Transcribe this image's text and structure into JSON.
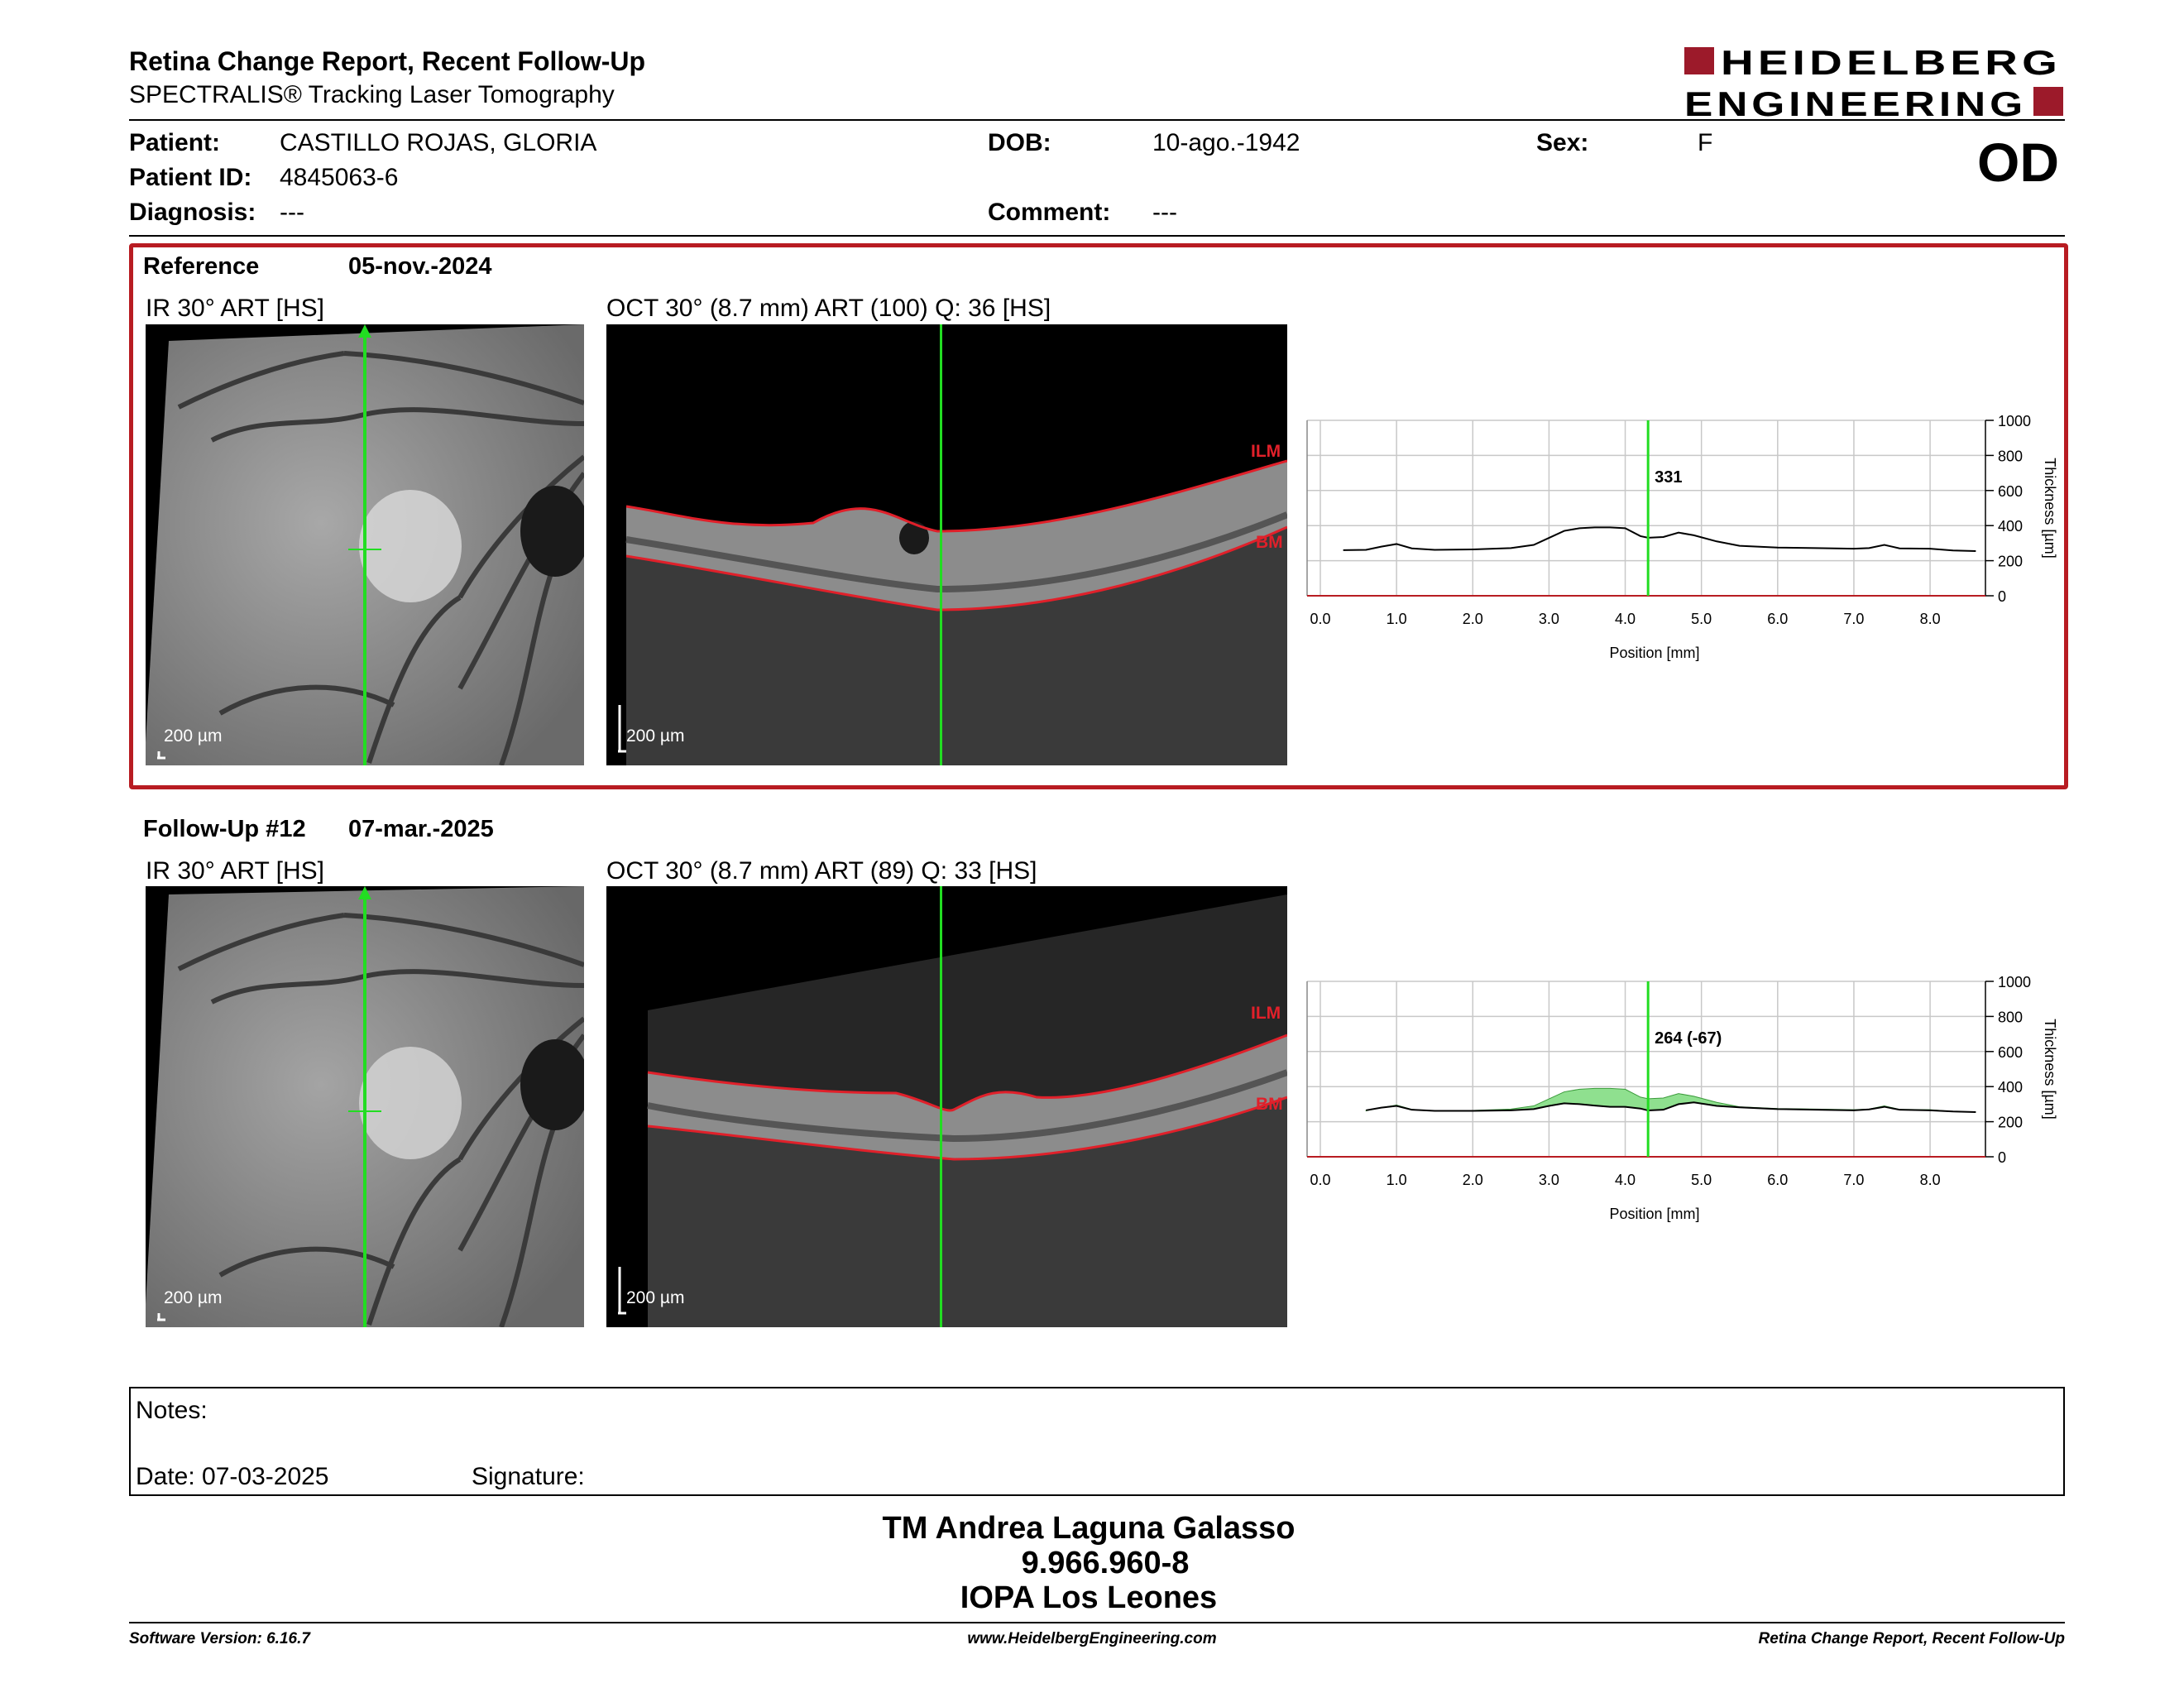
{
  "header": {
    "title": "Retina Change Report, Recent Follow-Up",
    "subtitle": "SPECTRALIS® Tracking Laser Tomography",
    "logo_line1": "HEIDELBERG",
    "logo_line2": "ENGINEERING",
    "brand_color": "#9c1a2a"
  },
  "patient": {
    "patient_label": "Patient:",
    "patient_value": "CASTILLO ROJAS, GLORIA",
    "id_label": "Patient ID:",
    "id_value": "4845063-6",
    "diagnosis_label": "Diagnosis:",
    "diagnosis_value": "---",
    "dob_label": "DOB:",
    "dob_value": "10-ago.-1942",
    "comment_label": "Comment:",
    "comment_value": "---",
    "sex_label": "Sex:",
    "sex_value": "F",
    "eye": "OD"
  },
  "reference": {
    "label": "Reference",
    "date": "05-nov.-2024",
    "ir_title": "IR 30° ART [HS]",
    "oct_title": "OCT 30° (8.7 mm) ART (100) Q: 36 [HS]",
    "scale_label": "200 µm",
    "ilm_label": "ILM",
    "bm_label": "BM",
    "box_color": "#b81c22"
  },
  "followup": {
    "label": "Follow-Up #12",
    "date": "07-mar.-2025",
    "ir_title": "IR 30° ART [HS]",
    "oct_title": "OCT 30° (8.7 mm) ART (89) Q: 33 [HS]",
    "scale_label": "200 µm",
    "ilm_label": "ILM",
    "bm_label": "BM"
  },
  "chart_data": [
    {
      "type": "line",
      "xlabel": "Position [mm]",
      "ylabel": "Thickness [µm]",
      "xlim": [
        0,
        8.7
      ],
      "ylim": [
        0,
        1000
      ],
      "x_ticks": [
        "0.0",
        "1.0",
        "2.0",
        "3.0",
        "4.0",
        "5.0",
        "6.0",
        "7.0",
        "8.0"
      ],
      "y_ticks": [
        "1000",
        "800",
        "600",
        "400",
        "200",
        "0"
      ],
      "grid": true,
      "cursor_x": 4.3,
      "cursor_label": "331",
      "series": [
        {
          "x": [
            0.3,
            0.6,
            0.8,
            1.0,
            1.2,
            1.5,
            2.0,
            2.5,
            2.8,
            3.0,
            3.2,
            3.4,
            3.6,
            3.8,
            4.0,
            4.2,
            4.3,
            4.5,
            4.7,
            4.9,
            5.2,
            5.5,
            6.0,
            6.5,
            7.0,
            7.2,
            7.4,
            7.6,
            8.0,
            8.3,
            8.6
          ],
          "y": [
            260,
            262,
            280,
            295,
            270,
            262,
            264,
            272,
            290,
            330,
            370,
            385,
            390,
            390,
            385,
            340,
            331,
            335,
            360,
            345,
            310,
            285,
            275,
            272,
            268,
            272,
            290,
            270,
            268,
            258,
            255
          ]
        }
      ]
    },
    {
      "type": "area",
      "xlabel": "Position [mm]",
      "ylabel": "Thickness [µm]",
      "xlim": [
        0,
        8.7
      ],
      "ylim": [
        0,
        1000
      ],
      "x_ticks": [
        "0.0",
        "1.0",
        "2.0",
        "3.0",
        "4.0",
        "5.0",
        "6.0",
        "7.0",
        "8.0"
      ],
      "y_ticks": [
        "1000",
        "800",
        "600",
        "400",
        "200",
        "0"
      ],
      "grid": true,
      "cursor_x": 4.3,
      "cursor_label": "264 (-67)",
      "fill_color": "#8fe08f",
      "series": [
        {
          "x": [
            0.6,
            0.8,
            1.0,
            1.2,
            1.5,
            2.0,
            2.5,
            2.8,
            3.0,
            3.2,
            3.4,
            3.6,
            3.8,
            4.0,
            4.2,
            4.3,
            4.5,
            4.7,
            4.9,
            5.2,
            5.5,
            6.0,
            6.5,
            7.0,
            7.2,
            7.4,
            7.6,
            8.0,
            8.3,
            8.6
          ],
          "y": [
            265,
            280,
            290,
            268,
            262,
            262,
            265,
            272,
            290,
            305,
            300,
            292,
            285,
            285,
            275,
            264,
            268,
            300,
            310,
            290,
            282,
            272,
            268,
            265,
            270,
            285,
            268,
            265,
            258,
            255
          ]
        }
      ]
    }
  ],
  "notes": {
    "notes_label": "Notes:",
    "date_label": "Date: 07-03-2025",
    "signature_label": "Signature:"
  },
  "signoff": {
    "name": "TM Andrea Laguna Galasso",
    "id": "9.966.960-8",
    "institution": "IOPA Los Leones"
  },
  "footer": {
    "software": "Software Version: 6.16.7",
    "website": "www.HeidelbergEngineering.com",
    "report": "Retina Change Report, Recent Follow-Up"
  }
}
